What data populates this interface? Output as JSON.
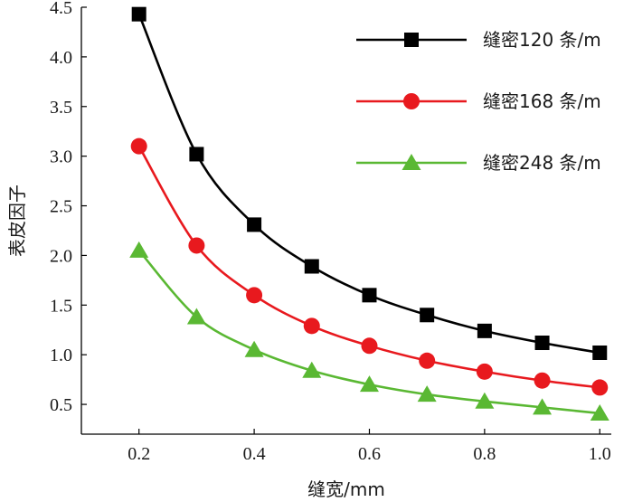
{
  "chart_data": {
    "type": "line",
    "title": "",
    "xlabel": "缝宽/mm",
    "ylabel": "表皮因子",
    "x": [
      0.2,
      0.3,
      0.4,
      0.5,
      0.6,
      0.7,
      0.8,
      0.9,
      1.0
    ],
    "xlim": [
      0.1,
      1.02
    ],
    "ylim": [
      0.2,
      4.5
    ],
    "xticks": [
      "0.2",
      "0.4",
      "0.6",
      "0.8",
      "1.0"
    ],
    "xtick_values": [
      0.2,
      0.4,
      0.6,
      0.8,
      1.0
    ],
    "yticks": [
      "0.5",
      "1.0",
      "1.5",
      "2.0",
      "2.5",
      "3.0",
      "3.5",
      "4.0",
      "4.5"
    ],
    "ytick_values": [
      0.5,
      1.0,
      1.5,
      2.0,
      2.5,
      3.0,
      3.5,
      4.0,
      4.5
    ],
    "grid": false,
    "legend_position": "top-right",
    "series": [
      {
        "name": "缝密120 条/m",
        "marker": "square",
        "color": "#000000",
        "values": [
          4.43,
          3.02,
          2.31,
          1.89,
          1.6,
          1.4,
          1.24,
          1.12,
          1.02
        ]
      },
      {
        "name": "缝密168 条/m",
        "marker": "circle",
        "color": "#e8191e",
        "values": [
          3.1,
          2.1,
          1.6,
          1.29,
          1.09,
          0.94,
          0.83,
          0.74,
          0.67
        ]
      },
      {
        "name": "缝密248 条/m",
        "marker": "triangle",
        "color": "#5ab833",
        "values": [
          2.05,
          1.38,
          1.05,
          0.84,
          0.7,
          0.6,
          0.53,
          0.47,
          0.41
        ]
      }
    ]
  }
}
